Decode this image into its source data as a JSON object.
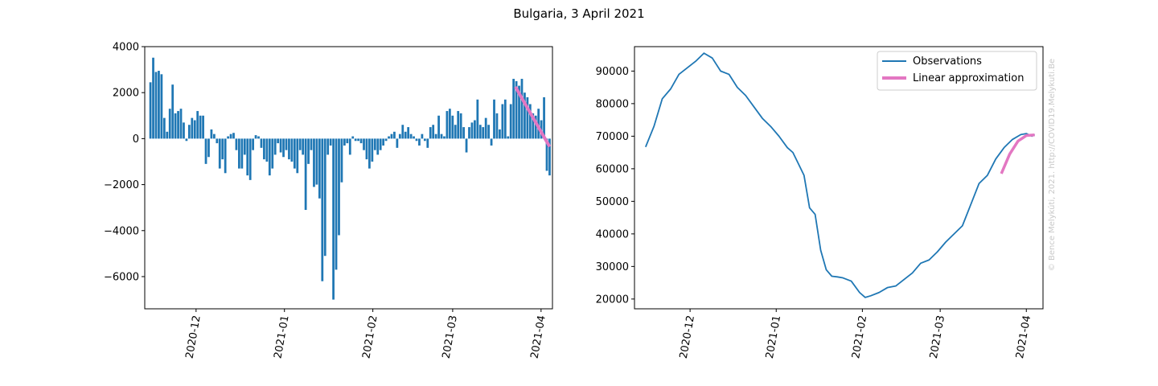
{
  "figure_title": "Bulgaria, 3 April 2021",
  "watermark": "© Bence Melykúti, 2021. http://COVID19.Melykuti.Be",
  "colors": {
    "observations": "#1f77b4",
    "approximation": "#e377c2",
    "watermark": "#c8c8c8"
  },
  "chart_data": [
    {
      "type": "bar",
      "title": "",
      "xlabel": "",
      "ylabel": "",
      "x_start": "2020-11-15",
      "x_end": "2021-04-04",
      "xlim": [
        "2020-11-13",
        "2021-04-05"
      ],
      "ylim": [
        -7400,
        4000
      ],
      "yticks": [
        4000,
        2000,
        0,
        -2000,
        -4000,
        -6000
      ],
      "ytick_labels": [
        "4000",
        "2000",
        "0",
        "−2000",
        "−4000",
        "−6000"
      ],
      "xticks": [
        "2020-12-01",
        "2021-01-01",
        "2021-02-01",
        "2021-03-01",
        "2021-04-01"
      ],
      "xtick_labels": [
        "2020-12",
        "2021-01",
        "2021-02",
        "2021-03",
        "2021-04"
      ],
      "values": [
        2450,
        3520,
        2900,
        2950,
        2800,
        900,
        300,
        1300,
        2350,
        1100,
        1200,
        1300,
        700,
        -100,
        600,
        900,
        800,
        1200,
        1000,
        1000,
        -1100,
        -800,
        400,
        200,
        -200,
        -1300,
        -900,
        -1500,
        100,
        200,
        250,
        -500,
        -1300,
        -1300,
        -700,
        -1600,
        -1800,
        -500,
        150,
        100,
        -400,
        -900,
        -1000,
        -1600,
        -1300,
        -700,
        -200,
        -600,
        -800,
        -500,
        -900,
        -1000,
        -1300,
        -1500,
        -500,
        -700,
        -3100,
        -1100,
        -500,
        -2100,
        -2000,
        -2600,
        -6200,
        -5100,
        -700,
        -300,
        -7000,
        -5700,
        -4200,
        -1900,
        -300,
        -200,
        -700,
        100,
        -100,
        -100,
        -200,
        -500,
        -900,
        -1300,
        -1000,
        -500,
        -700,
        -500,
        -300,
        -100,
        100,
        200,
        300,
        -400,
        200,
        600,
        300,
        500,
        200,
        100,
        -100,
        -300,
        200,
        -100,
        -400,
        500,
        600,
        200,
        1000,
        200,
        100,
        1200,
        1300,
        1000,
        600,
        1200,
        1100,
        500,
        -600,
        500,
        700,
        800,
        1700,
        600,
        500,
        900,
        600,
        -300,
        1700,
        1100,
        400,
        1500,
        1700,
        100,
        1500,
        2600,
        2500,
        2300,
        2600,
        2000,
        1800,
        1500,
        1100,
        1000,
        1300,
        800,
        1800,
        -1400,
        -1600
      ],
      "series": [
        {
          "name": "",
          "type": "line",
          "x": [
            "2021-03-23",
            "2021-04-04"
          ],
          "y": [
            2250,
            -350
          ]
        }
      ]
    },
    {
      "type": "line",
      "title": "",
      "xlabel": "",
      "ylabel": "",
      "xlim": [
        "2020-11-11",
        "2021-04-07"
      ],
      "ylim": [
        17000,
        97500
      ],
      "yticks": [
        90000,
        80000,
        70000,
        60000,
        50000,
        40000,
        30000,
        20000
      ],
      "ytick_labels": [
        "90000",
        "80000",
        "70000",
        "60000",
        "50000",
        "40000",
        "30000",
        "20000"
      ],
      "xticks": [
        "2020-12-01",
        "2021-01-01",
        "2021-02-01",
        "2021-03-01",
        "2021-04-01"
      ],
      "xtick_labels": [
        "2020-12",
        "2021-01",
        "2021-02",
        "2021-03",
        "2021-04"
      ],
      "legend": {
        "placement": "top-right",
        "entries": [
          "Observations",
          "Linear approximation"
        ]
      },
      "series": [
        {
          "name": "Observations",
          "x": [
            "2020-11-15",
            "2020-11-18",
            "2020-11-21",
            "2020-11-24",
            "2020-11-27",
            "2020-11-30",
            "2020-12-03",
            "2020-12-06",
            "2020-12-09",
            "2020-12-12",
            "2020-12-15",
            "2020-12-18",
            "2020-12-21",
            "2020-12-24",
            "2020-12-27",
            "2020-12-30",
            "2021-01-02",
            "2021-01-05",
            "2021-01-07",
            "2021-01-09",
            "2021-01-11",
            "2021-01-13",
            "2021-01-15",
            "2021-01-17",
            "2021-01-19",
            "2021-01-21",
            "2021-01-23",
            "2021-01-25",
            "2021-01-28",
            "2021-01-31",
            "2021-02-02",
            "2021-02-04",
            "2021-02-07",
            "2021-02-10",
            "2021-02-13",
            "2021-02-16",
            "2021-02-19",
            "2021-02-22",
            "2021-02-25",
            "2021-02-28",
            "2021-03-03",
            "2021-03-06",
            "2021-03-09",
            "2021-03-12",
            "2021-03-15",
            "2021-03-18",
            "2021-03-21",
            "2021-03-24",
            "2021-03-27",
            "2021-03-30",
            "2021-04-01",
            "2021-04-03",
            "2021-04-04"
          ],
          "y": [
            66700,
            73000,
            81500,
            84500,
            89000,
            91000,
            93000,
            95500,
            94000,
            90000,
            89000,
            85000,
            82500,
            79000,
            75500,
            73000,
            70000,
            66500,
            65000,
            61500,
            58000,
            48000,
            46000,
            35000,
            29000,
            27000,
            26800,
            26500,
            25500,
            22000,
            20500,
            21000,
            22000,
            23500,
            24000,
            26000,
            28000,
            31000,
            32000,
            34500,
            37500,
            40000,
            42500,
            49000,
            55500,
            58000,
            63000,
            66500,
            69000,
            70500,
            70800,
            70000,
            70500
          ]
        },
        {
          "name": "Linear approximation",
          "x": [
            "2021-03-23",
            "2021-03-26",
            "2021-03-29",
            "2021-04-01",
            "2021-04-04"
          ],
          "y": [
            58500,
            64500,
            68500,
            70200,
            70400
          ]
        }
      ]
    }
  ]
}
